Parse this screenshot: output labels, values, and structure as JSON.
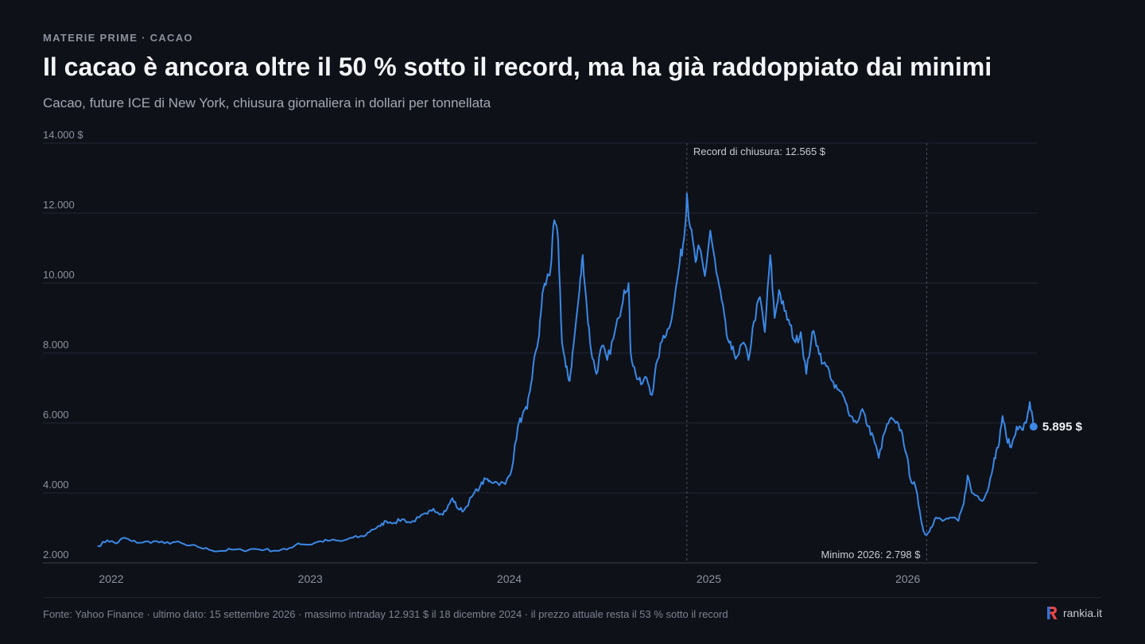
{
  "header": {
    "kicker": "MATERIE PRIME · CACAO",
    "title": "Il cacao è ancora oltre il 50 % sotto il record, ma ha già raddoppiato dai minimi",
    "subtitle": "Cacao, future ICE di New York, chiusura giornaliera in dollari per tonnellata"
  },
  "footer": {
    "source": "Fonte: Yahoo Finance · ultimo dato: 15 settembre 2026 · massimo intraday 12.931 $ il 18 dicembre 2024 · il prezzo attuale resta il 53 % sotto il record",
    "brand": "rankia.it"
  },
  "colors": {
    "line": "#3b88e6",
    "grid": "#232833",
    "annotation": "#4a4f5b",
    "tick_text": "#8d929e",
    "label_text": "#c8cbd2"
  },
  "chart_data": {
    "type": "line",
    "series": [
      {
        "points": [
          [
            "2022-01-03",
            2480
          ],
          [
            "2022-01-20",
            2650
          ],
          [
            "2022-02-05",
            2560
          ],
          [
            "2022-02-20",
            2720
          ],
          [
            "2022-03-05",
            2620
          ],
          [
            "2022-03-25",
            2580
          ],
          [
            "2022-04-15",
            2620
          ],
          [
            "2022-05-05",
            2560
          ],
          [
            "2022-05-25",
            2600
          ],
          [
            "2022-06-15",
            2500
          ],
          [
            "2022-07-05",
            2460
          ],
          [
            "2022-07-25",
            2380
          ],
          [
            "2022-08-15",
            2340
          ],
          [
            "2022-09-05",
            2380
          ],
          [
            "2022-09-25",
            2360
          ],
          [
            "2022-10-15",
            2400
          ],
          [
            "2022-11-05",
            2380
          ],
          [
            "2022-11-25",
            2350
          ],
          [
            "2022-12-15",
            2380
          ],
          [
            "2023-01-05",
            2560
          ],
          [
            "2023-01-25",
            2520
          ],
          [
            "2023-02-15",
            2620
          ],
          [
            "2023-03-05",
            2640
          ],
          [
            "2023-03-25",
            2620
          ],
          [
            "2023-04-15",
            2720
          ],
          [
            "2023-05-05",
            2760
          ],
          [
            "2023-05-20",
            2950
          ],
          [
            "2023-06-05",
            3050
          ],
          [
            "2023-06-15",
            3200
          ],
          [
            "2023-06-30",
            3150
          ],
          [
            "2023-07-15",
            3250
          ],
          [
            "2023-07-30",
            3150
          ],
          [
            "2023-08-15",
            3300
          ],
          [
            "2023-08-30",
            3400
          ],
          [
            "2023-09-10",
            3550
          ],
          [
            "2023-09-25",
            3400
          ],
          [
            "2023-10-05",
            3550
          ],
          [
            "2023-10-15",
            3850
          ],
          [
            "2023-10-25",
            3550
          ],
          [
            "2023-11-05",
            3500
          ],
          [
            "2023-11-20",
            3900
          ],
          [
            "2023-12-05",
            4200
          ],
          [
            "2023-12-15",
            4400
          ],
          [
            "2023-12-22",
            4350
          ],
          [
            "2024-01-05",
            4300
          ],
          [
            "2024-01-20",
            4250
          ],
          [
            "2024-02-01",
            4700
          ],
          [
            "2024-02-12",
            5900
          ],
          [
            "2024-02-20",
            6200
          ],
          [
            "2024-02-29",
            6400
          ],
          [
            "2024-03-07",
            7100
          ],
          [
            "2024-03-15",
            8000
          ],
          [
            "2024-03-22",
            8500
          ],
          [
            "2024-03-28",
            9700
          ],
          [
            "2024-04-05",
            10100
          ],
          [
            "2024-04-12",
            10400
          ],
          [
            "2024-04-19",
            11800
          ],
          [
            "2024-04-26",
            11200
          ],
          [
            "2024-05-03",
            8300
          ],
          [
            "2024-05-10",
            7600
          ],
          [
            "2024-05-17",
            7200
          ],
          [
            "2024-05-24",
            8200
          ],
          [
            "2024-06-04",
            9800
          ],
          [
            "2024-06-10",
            10800
          ],
          [
            "2024-06-18",
            9200
          ],
          [
            "2024-06-25",
            8100
          ],
          [
            "2024-07-05",
            7400
          ],
          [
            "2024-07-15",
            8200
          ],
          [
            "2024-07-25",
            7800
          ],
          [
            "2024-08-05",
            8400
          ],
          [
            "2024-08-15",
            9000
          ],
          [
            "2024-08-25",
            9800
          ],
          [
            "2024-09-02",
            10000
          ],
          [
            "2024-09-06",
            8000
          ],
          [
            "2024-09-15",
            7400
          ],
          [
            "2024-09-25",
            7100
          ],
          [
            "2024-10-05",
            7300
          ],
          [
            "2024-10-15",
            6800
          ],
          [
            "2024-10-25",
            7800
          ],
          [
            "2024-11-05",
            8500
          ],
          [
            "2024-11-15",
            8700
          ],
          [
            "2024-11-25",
            9500
          ],
          [
            "2024-12-05",
            10600
          ],
          [
            "2024-12-13",
            11300
          ],
          [
            "2024-12-18",
            12565
          ],
          [
            "2024-12-24",
            11600
          ],
          [
            "2025-01-03",
            10600
          ],
          [
            "2025-01-10",
            11000
          ],
          [
            "2025-01-20",
            10200
          ],
          [
            "2025-01-30",
            11500
          ],
          [
            "2025-02-10",
            10300
          ],
          [
            "2025-02-20",
            9500
          ],
          [
            "2025-03-01",
            8500
          ],
          [
            "2025-03-10",
            8100
          ],
          [
            "2025-03-20",
            7900
          ],
          [
            "2025-04-01",
            8300
          ],
          [
            "2025-04-10",
            7800
          ],
          [
            "2025-04-20",
            8900
          ],
          [
            "2025-05-01",
            9600
          ],
          [
            "2025-05-10",
            8600
          ],
          [
            "2025-05-20",
            10800
          ],
          [
            "2025-05-28",
            9000
          ],
          [
            "2025-06-05",
            9800
          ],
          [
            "2025-06-15",
            9200
          ],
          [
            "2025-06-25",
            8800
          ],
          [
            "2025-07-05",
            8300
          ],
          [
            "2025-07-15",
            8600
          ],
          [
            "2025-07-25",
            7400
          ],
          [
            "2025-08-05",
            8600
          ],
          [
            "2025-08-15",
            8200
          ],
          [
            "2025-08-25",
            7700
          ],
          [
            "2025-09-05",
            7500
          ],
          [
            "2025-09-15",
            7000
          ],
          [
            "2025-09-25",
            6900
          ],
          [
            "2025-10-05",
            6600
          ],
          [
            "2025-10-15",
            6200
          ],
          [
            "2025-10-25",
            6000
          ],
          [
            "2025-11-05",
            6400
          ],
          [
            "2025-11-15",
            5900
          ],
          [
            "2025-11-25",
            5600
          ],
          [
            "2025-12-05",
            5000
          ],
          [
            "2025-12-15",
            5700
          ],
          [
            "2025-12-25",
            6100
          ],
          [
            "2026-01-05",
            6000
          ],
          [
            "2026-01-15",
            5800
          ],
          [
            "2026-01-25",
            5100
          ],
          [
            "2026-02-01",
            4400
          ],
          [
            "2026-02-10",
            4200
          ],
          [
            "2026-02-18",
            3500
          ],
          [
            "2026-02-25",
            2900
          ],
          [
            "2026-03-03",
            2798
          ],
          [
            "2026-03-10",
            3000
          ],
          [
            "2026-03-20",
            3300
          ],
          [
            "2026-04-01",
            3200
          ],
          [
            "2026-04-15",
            3300
          ],
          [
            "2026-04-30",
            3200
          ],
          [
            "2026-05-10",
            3700
          ],
          [
            "2026-05-17",
            4500
          ],
          [
            "2026-05-25",
            4000
          ],
          [
            "2026-06-05",
            3900
          ],
          [
            "2026-06-15",
            3800
          ],
          [
            "2026-06-25",
            4200
          ],
          [
            "2026-07-05",
            5000
          ],
          [
            "2026-07-12",
            5300
          ],
          [
            "2026-07-20",
            6200
          ],
          [
            "2026-07-27",
            5600
          ],
          [
            "2026-08-05",
            5300
          ],
          [
            "2026-08-15",
            5900
          ],
          [
            "2026-08-25",
            5800
          ],
          [
            "2026-09-01",
            6000
          ],
          [
            "2026-09-08",
            6600
          ],
          [
            "2026-09-15",
            5895
          ]
        ]
      }
    ],
    "x_ticks": [
      {
        "date": "2022-01-01",
        "label": "2022"
      },
      {
        "date": "2023-01-01",
        "label": "2023"
      },
      {
        "date": "2024-01-01",
        "label": "2024"
      },
      {
        "date": "2025-01-01",
        "label": "2025"
      },
      {
        "date": "2026-01-01",
        "label": "2026"
      }
    ],
    "y_ticks": [
      {
        "value": 2000,
        "label": "2.000"
      },
      {
        "value": 4000,
        "label": "4.000"
      },
      {
        "value": 6000,
        "label": "6.000"
      },
      {
        "value": 8000,
        "label": "8.000"
      },
      {
        "value": 10000,
        "label": "10.000"
      },
      {
        "value": 12000,
        "label": "12.000"
      },
      {
        "value": 14000,
        "label": "14.000 $"
      }
    ],
    "xlim": [
      "2022-01-01",
      "2026-09-21"
    ],
    "ylim": [
      2000,
      14000
    ],
    "grid": true,
    "annotations": [
      {
        "date": "2024-12-18",
        "label": "Record di chiusura: 12.565 $",
        "position": "top"
      },
      {
        "date": "2026-03-03",
        "label": "Minimo 2026: 2.798 $",
        "position": "bottom"
      }
    ],
    "last_value": {
      "date": "2026-09-15",
      "value": 5895,
      "label": "5.895 $"
    }
  }
}
